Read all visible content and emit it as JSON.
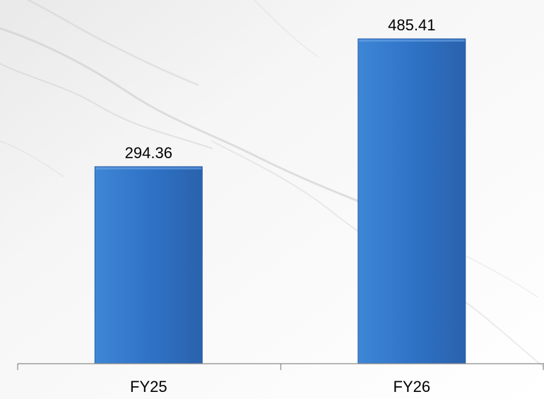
{
  "chart_data": {
    "type": "bar",
    "categories": [
      "FY25",
      "FY26"
    ],
    "values": [
      294.36,
      485.41
    ],
    "data_labels": [
      "294.36",
      "485.41"
    ],
    "title": "",
    "xlabel": "",
    "ylabel": "",
    "ylim": [
      0,
      500
    ],
    "grid": false,
    "legend": "none",
    "colors": {
      "bar_top": "#3f86d6",
      "bar_mid": "#2f73c6",
      "bar_bottom": "#2a62ad",
      "bar_edge": "#285ea6",
      "axis": "#8a8a8a",
      "text": "#000000"
    }
  }
}
